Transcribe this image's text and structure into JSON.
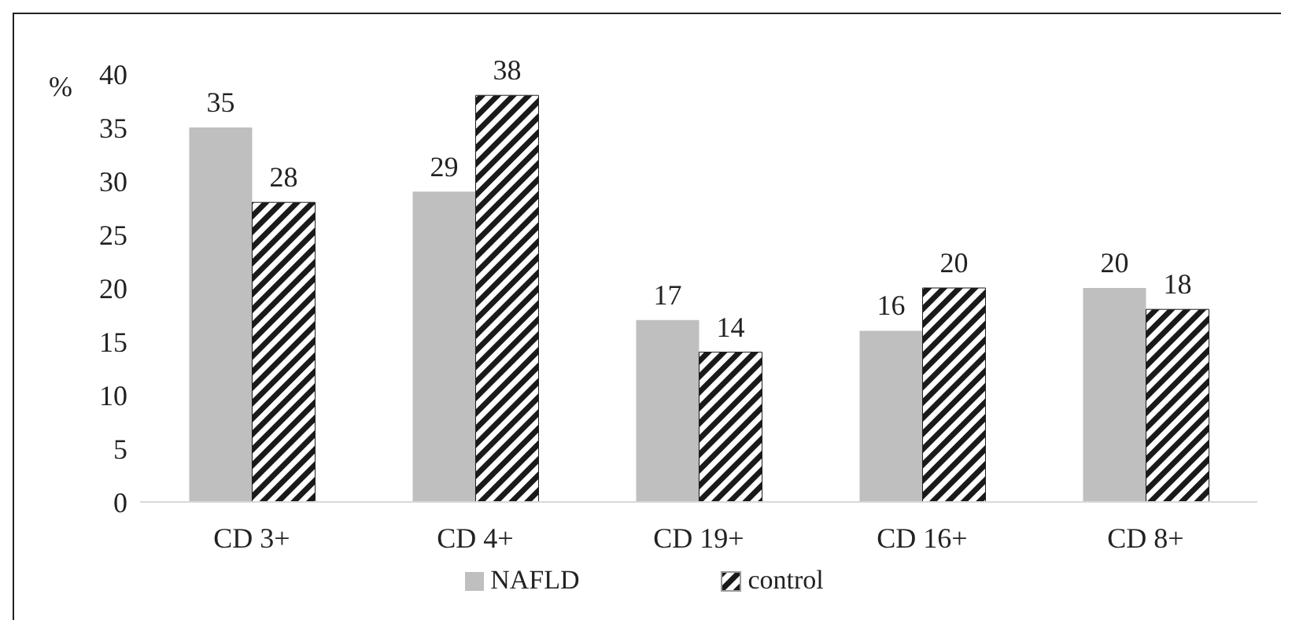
{
  "chart_data": {
    "type": "bar",
    "ylabel": "%",
    "categories": [
      "CD 3+",
      "CD 4+",
      "CD 19+",
      "CD 16+",
      "CD 8+"
    ],
    "series": [
      {
        "name": "NAFLD",
        "color": "#bfbfbf",
        "values": [
          35,
          29,
          17,
          16,
          20
        ]
      },
      {
        "name": "control",
        "color": "#1a1a1a",
        "values": [
          28,
          38,
          14,
          20,
          18
        ]
      }
    ],
    "ylim": [
      0,
      40
    ],
    "yticks": [
      0,
      5,
      10,
      15,
      20,
      25,
      30,
      35,
      40
    ],
    "grid": false,
    "legend": "bottom",
    "data_labels": true
  }
}
